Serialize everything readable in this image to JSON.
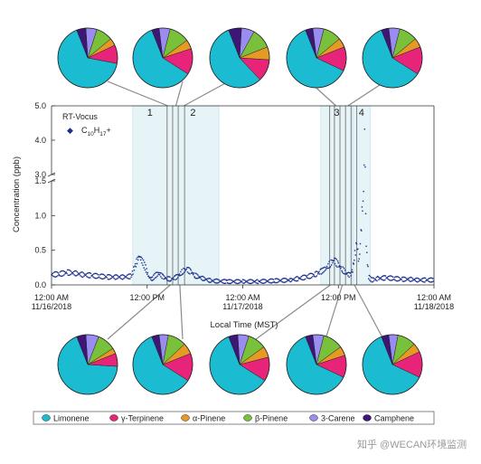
{
  "chart_data": {
    "type": "scatter",
    "instrument": "RT-Vocus",
    "series_label": "C10H17+",
    "formula": {
      "base": "C",
      "sub1": "10",
      "mid": "H",
      "sub2": "17",
      "suffix": "+"
    },
    "xlabel": "Local Time (MST)",
    "ylabel": "Concentration (ppb)",
    "x_ticks": [
      {
        "time": "12:00 AM",
        "date": "11/16/2018",
        "hour": 0
      },
      {
        "time": "12:00 PM",
        "date": "",
        "hour": 12
      },
      {
        "time": "12:00 AM",
        "date": "11/17/2018",
        "hour": 24
      },
      {
        "time": "12:00 PM",
        "date": "",
        "hour": 36
      },
      {
        "time": "12:00 AM",
        "date": "11/18/2018",
        "hour": 48
      }
    ],
    "y_ticks_lower": [
      "0.0",
      "0.5",
      "1.0",
      "1.5"
    ],
    "y_ticks_upper": [
      "3.0",
      "4.0",
      "5.0"
    ],
    "xlim_hours": [
      0,
      48
    ],
    "ylim_lower": [
      0,
      1.5
    ],
    "ylim_upper": [
      3.0,
      5.0
    ],
    "periods": [
      {
        "label": "1",
        "start": 10.2,
        "end": 14.5
      },
      {
        "label": "2",
        "start": 14.5,
        "end": 21.0
      },
      {
        "label": "3",
        "start": 33.8,
        "end": 37.8
      },
      {
        "label": "4",
        "start": 37.8,
        "end": 40.0
      }
    ],
    "sample_lines_hours": [
      14.5,
      15.2,
      15.9,
      16.7,
      34.9,
      35.5,
      36.2,
      36.9,
      37.6,
      38.3
    ],
    "concentration_series": [
      [
        0.0,
        0.13
      ],
      [
        1.0,
        0.14
      ],
      [
        2.0,
        0.16
      ],
      [
        3.0,
        0.15
      ],
      [
        4.0,
        0.13
      ],
      [
        5.0,
        0.12
      ],
      [
        6.0,
        0.11
      ],
      [
        7.0,
        0.1
      ],
      [
        8.0,
        0.1
      ],
      [
        9.0,
        0.1
      ],
      [
        10.0,
        0.11
      ],
      [
        10.6,
        0.28
      ],
      [
        11.0,
        0.38
      ],
      [
        11.4,
        0.31
      ],
      [
        11.8,
        0.22
      ],
      [
        12.2,
        0.1
      ],
      [
        12.6,
        0.07
      ],
      [
        13.0,
        0.12
      ],
      [
        13.5,
        0.15
      ],
      [
        14.0,
        0.1
      ],
      [
        14.5,
        0.08
      ],
      [
        15.0,
        0.07
      ],
      [
        15.5,
        0.09
      ],
      [
        16.0,
        0.12
      ],
      [
        16.5,
        0.18
      ],
      [
        17.0,
        0.2
      ],
      [
        17.5,
        0.17
      ],
      [
        18.0,
        0.12
      ],
      [
        19.0,
        0.08
      ],
      [
        20.0,
        0.05
      ],
      [
        22.0,
        0.04
      ],
      [
        24.0,
        0.04
      ],
      [
        26.0,
        0.04
      ],
      [
        28.0,
        0.05
      ],
      [
        30.0,
        0.06
      ],
      [
        31.0,
        0.08
      ],
      [
        32.0,
        0.1
      ],
      [
        33.0,
        0.13
      ],
      [
        33.8,
        0.17
      ],
      [
        34.5,
        0.22
      ],
      [
        35.0,
        0.28
      ],
      [
        35.5,
        0.32
      ],
      [
        36.0,
        0.26
      ],
      [
        36.5,
        0.2
      ],
      [
        37.0,
        0.15
      ],
      [
        37.5,
        0.12
      ],
      [
        37.8,
        0.2
      ],
      [
        38.0,
        0.35
      ],
      [
        38.3,
        0.55
      ],
      [
        38.6,
        0.3
      ],
      [
        38.9,
        0.8
      ],
      [
        39.1,
        1.2
      ],
      [
        39.3,
        4.1
      ],
      [
        39.5,
        0.5
      ],
      [
        39.8,
        0.1
      ],
      [
        40.2,
        0.06
      ],
      [
        41.0,
        0.08
      ],
      [
        42.0,
        0.09
      ],
      [
        43.0,
        0.08
      ],
      [
        44.0,
        0.07
      ],
      [
        45.0,
        0.07
      ],
      [
        46.0,
        0.06
      ],
      [
        47.0,
        0.06
      ],
      [
        48.0,
        0.06
      ]
    ],
    "species": [
      {
        "name": "Limonene",
        "color": "#1bbcd1"
      },
      {
        "name": "γ-Terpinene",
        "color": "#e8237a"
      },
      {
        "name": "α-Pinene",
        "color": "#e69a23"
      },
      {
        "name": "β-Pinene",
        "color": "#79c13b"
      },
      {
        "name": "3-Carene",
        "color": "#9a8cf0"
      },
      {
        "name": "Camphene",
        "color": "#3d1677"
      }
    ],
    "pies_top": [
      {
        "values": [
          0.66,
          0.1,
          0.04,
          0.09,
          0.06,
          0.05
        ]
      },
      {
        "values": [
          0.6,
          0.14,
          0.05,
          0.11,
          0.06,
          0.04
        ]
      },
      {
        "values": [
          0.56,
          0.12,
          0.07,
          0.11,
          0.07,
          0.07
        ]
      },
      {
        "values": [
          0.62,
          0.13,
          0.05,
          0.1,
          0.06,
          0.04
        ]
      },
      {
        "values": [
          0.6,
          0.15,
          0.05,
          0.1,
          0.06,
          0.04
        ]
      }
    ],
    "pies_bottom": [
      {
        "values": [
          0.68,
          0.07,
          0.03,
          0.1,
          0.07,
          0.05
        ]
      },
      {
        "values": [
          0.6,
          0.15,
          0.06,
          0.1,
          0.05,
          0.04
        ]
      },
      {
        "values": [
          0.6,
          0.13,
          0.06,
          0.1,
          0.06,
          0.05
        ]
      },
      {
        "values": [
          0.62,
          0.12,
          0.05,
          0.11,
          0.06,
          0.04
        ]
      },
      {
        "values": [
          0.62,
          0.14,
          0.05,
          0.1,
          0.05,
          0.04
        ]
      }
    ]
  },
  "watermark": "知乎 @WECAN环境监测"
}
